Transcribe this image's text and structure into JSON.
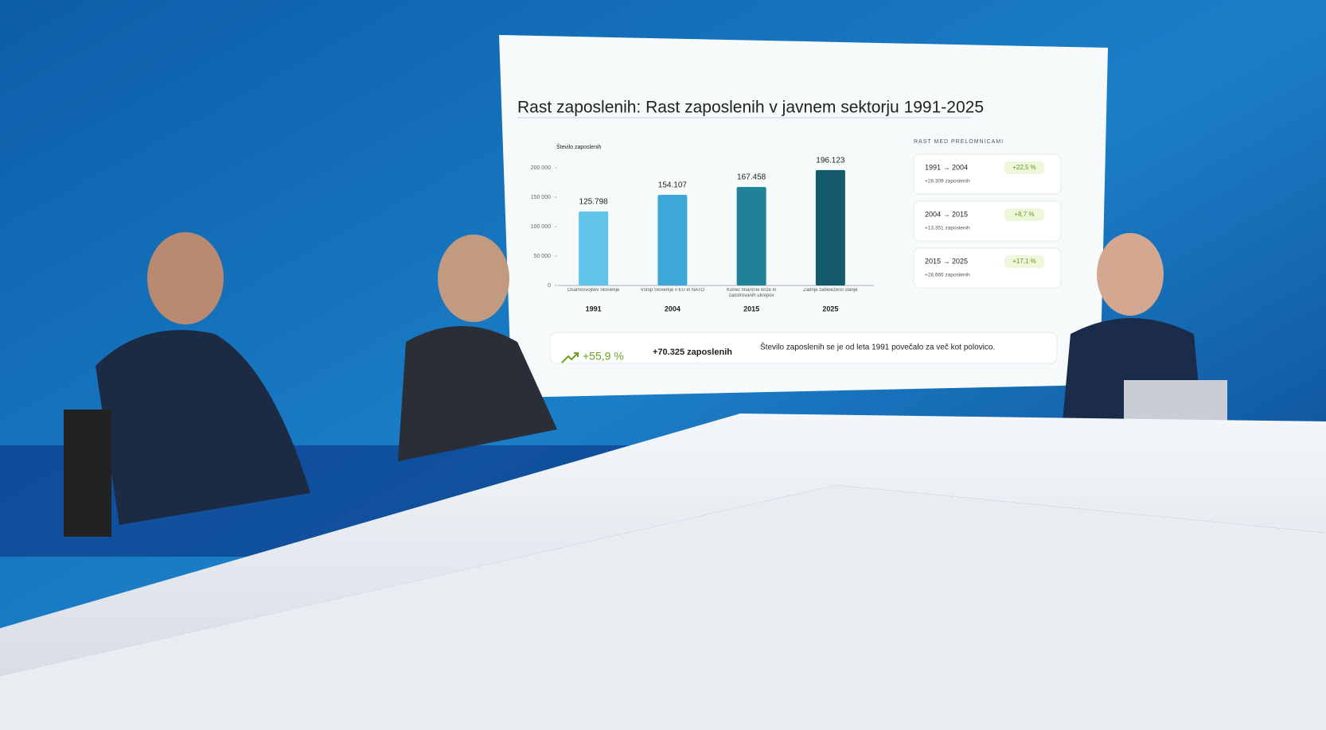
{
  "chart_data": {
    "type": "bar",
    "title": "Rast zaposlenih: Rast zaposlenih v javnem sektorju 1991-2025",
    "y_label": "Število zaposlenih",
    "categories": [
      "1991",
      "2004",
      "2015",
      "2025"
    ],
    "category_descriptions": [
      "Osamosvojitev Slovenije",
      "Vstop Slovenije v EU in NATO",
      "Konec finančne krize in zaostrovanih ukrepov",
      "Zadnje zabeleženo stanje"
    ],
    "values": [
      125798,
      154107,
      167458,
      196123
    ],
    "value_labels": [
      "125.798",
      "154.107",
      "167.458",
      "196.123"
    ],
    "colors": [
      "#5fc3ea",
      "#3ea9d9",
      "#1f8299",
      "#145a6c"
    ],
    "ylim": [
      0,
      200000
    ],
    "yticks": [
      {
        "value": 0,
        "label": "0"
      },
      {
        "value": 50000,
        "label": "50 000"
      },
      {
        "value": 100000,
        "label": "100 000"
      },
      {
        "value": 150000,
        "label": "150 000"
      },
      {
        "value": 200000,
        "label": "200 000"
      }
    ],
    "grid": false
  },
  "side_panel": {
    "title": "RAST MED PRELOMNICAMI",
    "cards": [
      {
        "period": "1991 → 2004",
        "change": "+28.309 zaposlenih",
        "percent": "+22,5 %"
      },
      {
        "period": "2004 → 2015",
        "change": "+13.351 zaposlenih",
        "percent": "+8,7 %"
      },
      {
        "period": "2015 → 2025",
        "change": "+28.665 zaposlenih",
        "percent": "+17,1 %"
      }
    ]
  },
  "summary": {
    "percent": "+55,9 %",
    "total": "+70.325 zaposlenih",
    "note": "Število zaposlenih se je od leta 1991 povečalo za več kot polovico."
  }
}
